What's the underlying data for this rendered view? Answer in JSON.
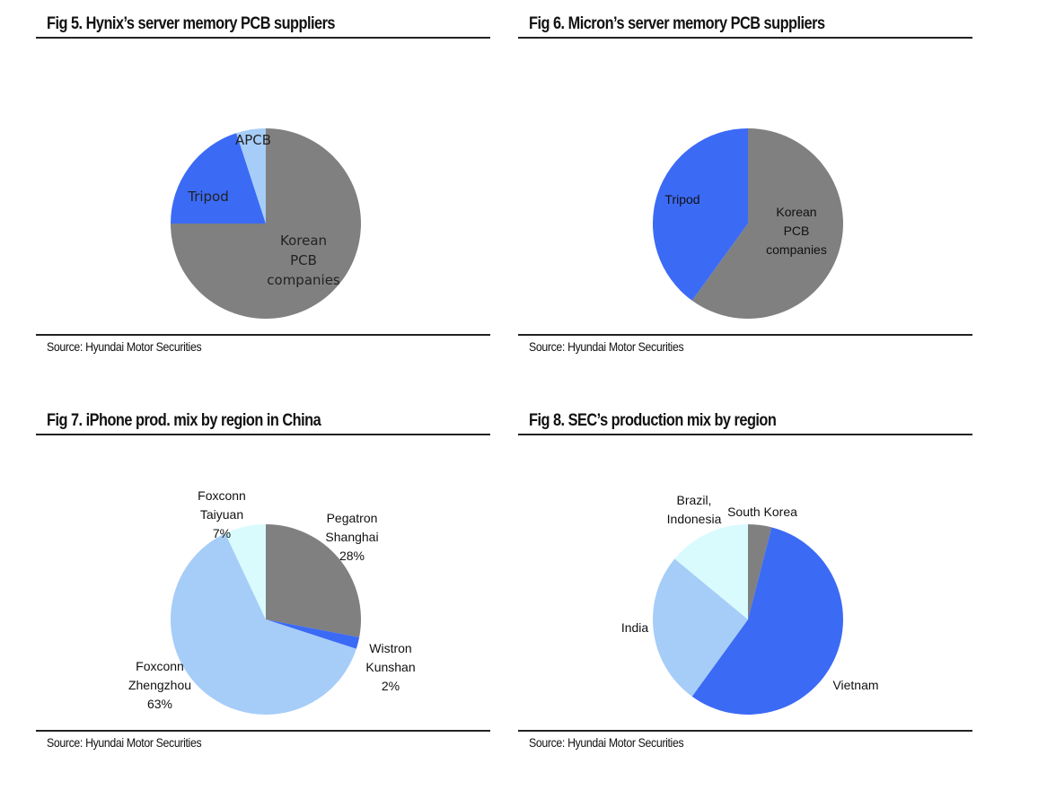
{
  "charts": [
    {
      "title": "Fig 5. Hynix’s server memory PCB suppliers",
      "source": "Source: Hyundai Motor Securities",
      "chart_data": {
        "type": "pie",
        "slices": [
          {
            "label": "Korean PCB companies",
            "lines": [
              "Korean",
              "PCB",
              "companies"
            ],
            "value": 75,
            "color": "#808080"
          },
          {
            "label": "Tripod",
            "lines": [
              "Tripod"
            ],
            "value": 20,
            "color": "#3b6af5"
          },
          {
            "label": "APCB",
            "lines": [
              "APCB"
            ],
            "value": 5,
            "color": "#a6cdf8"
          }
        ]
      }
    },
    {
      "title": "Fig 6. Micron’s server memory PCB suppliers",
      "source": "Source: Hyundai Motor Securities",
      "chart_data": {
        "type": "pie",
        "slices": [
          {
            "label": "Korean PCB companies",
            "lines": [
              "Korean",
              "PCB",
              "companies"
            ],
            "value": 60,
            "color": "#808080"
          },
          {
            "label": "Tripod",
            "lines": [
              "Tripod"
            ],
            "value": 40,
            "color": "#3b6af5"
          }
        ]
      }
    },
    {
      "title": "Fig 7. iPhone prod. mix by region in China",
      "source": "Source: Hyundai Motor Securities",
      "chart_data": {
        "type": "pie",
        "slices": [
          {
            "label": "Pegatron Shanghai 28%",
            "lines": [
              "Pegatron",
              "Shanghai",
              "28%"
            ],
            "value": 28,
            "color": "#808080"
          },
          {
            "label": "Wistron Kunshan 2%",
            "lines": [
              "Wistron",
              "Kunshan",
              "2%"
            ],
            "value": 2,
            "color": "#3b6af5"
          },
          {
            "label": "Foxconn Zhengzhou 63%",
            "lines": [
              "Foxconn",
              "Zhengzhou",
              "63%"
            ],
            "value": 63,
            "color": "#a6cdf8"
          },
          {
            "label": "Foxconn Taiyuan 7%",
            "lines": [
              "Foxconn",
              "Taiyuan",
              "7%"
            ],
            "value": 7,
            "color": "#d9fbfd"
          }
        ]
      }
    },
    {
      "title": "Fig 8. SEC’s production mix by region",
      "source": "Source: Hyundai Motor Securities",
      "chart_data": {
        "type": "pie",
        "slices": [
          {
            "label": "South Korea",
            "lines": [
              "South Korea"
            ],
            "value": 4,
            "color": "#808080"
          },
          {
            "label": "Vietnam",
            "lines": [
              "Vietnam"
            ],
            "value": 56,
            "color": "#3b6af5"
          },
          {
            "label": "India",
            "lines": [
              "India"
            ],
            "value": 26,
            "color": "#a6cdf8"
          },
          {
            "label": "Brazil, Indonesia",
            "lines": [
              "Brazil,",
              "Indonesia"
            ],
            "value": 14,
            "color": "#d9fbfd"
          }
        ]
      }
    }
  ]
}
